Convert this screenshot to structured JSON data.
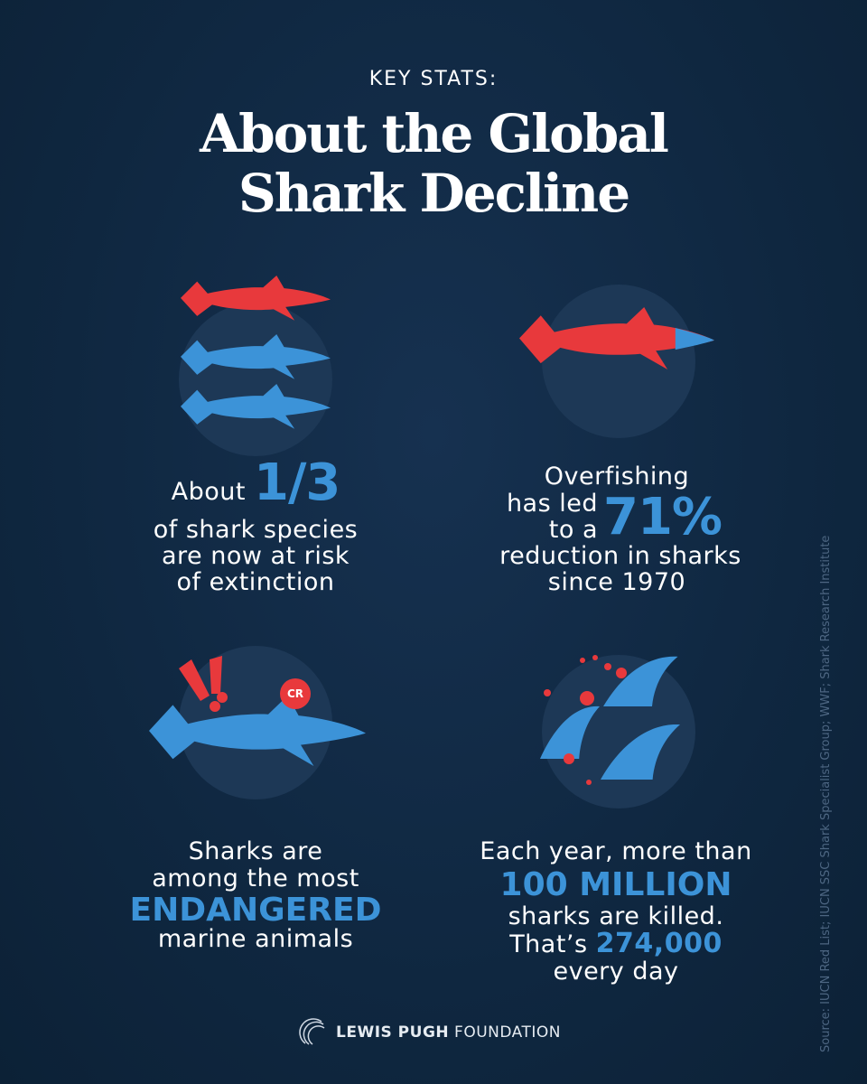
{
  "header": {
    "kicker": "KEY STATS:",
    "title_lines": [
      "About the Global",
      "Shark Decline"
    ]
  },
  "stats": [
    {
      "lead": "About",
      "figure": "1/3",
      "lines": [
        "of shark species",
        "are now at risk",
        "of extinction"
      ]
    },
    {
      "lines_before": [
        "Overfishing",
        "has led",
        "to a"
      ],
      "figure": "71%",
      "lines_after": [
        "reduction in sharks",
        "since 1970"
      ]
    },
    {
      "badge": "CR",
      "lines_before": [
        "Sharks are",
        "among the most"
      ],
      "emphasis": "ENDANGERED",
      "lines_after": [
        "marine animals"
      ]
    },
    {
      "lines_before": [
        "Each year, more than"
      ],
      "figure": "100 MILLION",
      "lines_after": [
        "sharks are killed."
      ],
      "lead": "That’s",
      "figure_2": "274,000",
      "tail": "every day"
    }
  ],
  "source": "Source: IUCN Red List; IUCN SSC Shark Specialist Group; WWF; Shark Research Institute",
  "footer": {
    "brand_bold": "LEWIS PUGH",
    "brand_rest": "FOUNDATION"
  }
}
